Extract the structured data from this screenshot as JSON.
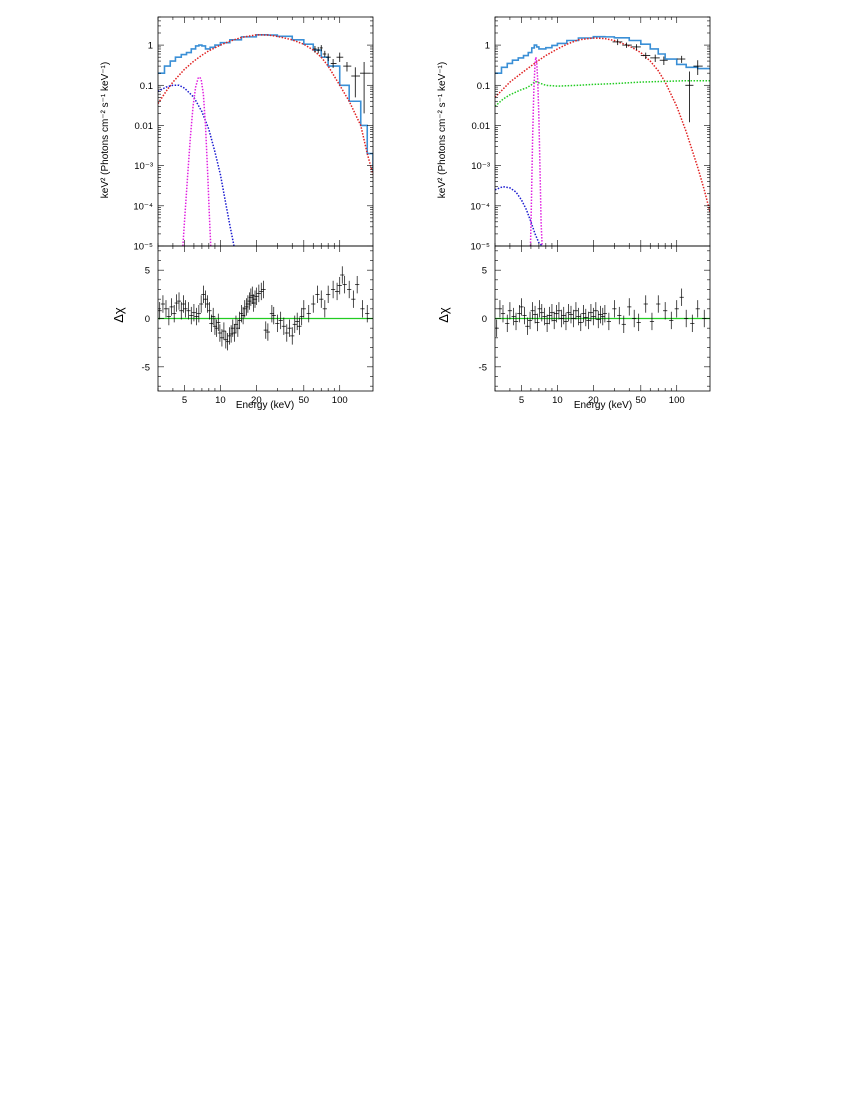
{
  "labels": {
    "ylabel_spectrum": "keV² (Photons cm⁻² s⁻¹ keV⁻¹)",
    "ylabel_residual": "Δχ",
    "xlabel": "Energy (keV)"
  },
  "colors": {
    "data": "#000000",
    "total_model": "#3a8fd6",
    "red_component": "#e02020",
    "blue_component": "#1a1ad0",
    "magenta_component": "#e020e0",
    "green_component": "#22cc22",
    "zero_line": "#22cc22"
  },
  "chart_data": [
    {
      "type": "line",
      "panel": "left-top",
      "xlabel": "",
      "ylabel": "keV² (Photons cm⁻² s⁻¹ keV⁻¹)",
      "xscale": "log",
      "yscale": "log",
      "xlim": [
        3,
        190
      ],
      "ylim": [
        1e-05,
        5
      ],
      "xticks": [
        5,
        10,
        20,
        50,
        100
      ],
      "yticks": [
        1e-05,
        0.0001,
        0.001,
        0.01,
        0.1,
        1
      ],
      "yticklabels": [
        "10⁻⁵",
        "10⁻⁴",
        "10⁻³",
        "0.01",
        "0.1",
        "1"
      ],
      "series": [
        {
          "component": "total_model",
          "style": "step",
          "x": [
            3,
            3.4,
            3.8,
            4.2,
            4.7,
            5.2,
            5.7,
            6.2,
            6.6,
            7.0,
            7.5,
            8.2,
            9,
            10,
            12,
            15,
            20,
            25,
            30,
            40,
            50,
            60,
            70,
            80,
            100,
            120,
            150,
            170,
            190
          ],
          "y": [
            0.2,
            0.3,
            0.4,
            0.5,
            0.58,
            0.65,
            0.8,
            0.95,
            1.0,
            0.95,
            0.8,
            0.88,
            1.0,
            1.15,
            1.35,
            1.6,
            1.8,
            1.78,
            1.65,
            1.35,
            1.05,
            0.75,
            0.5,
            0.3,
            0.1,
            0.04,
            0.01,
            0.002,
            0.0007
          ]
        },
        {
          "component": "red_component",
          "style": "dotted",
          "x": [
            3,
            3.5,
            4,
            5,
            6,
            7,
            8,
            10,
            12,
            15,
            20,
            25,
            30,
            40,
            50,
            60,
            70,
            80,
            100,
            120,
            150,
            170,
            190
          ],
          "y": [
            0.035,
            0.07,
            0.12,
            0.25,
            0.4,
            0.56,
            0.72,
            1.0,
            1.25,
            1.55,
            1.8,
            1.78,
            1.65,
            1.35,
            1.05,
            0.75,
            0.5,
            0.3,
            0.1,
            0.04,
            0.01,
            0.002,
            0.0006
          ]
        },
        {
          "component": "blue_component",
          "style": "dotted",
          "x": [
            3,
            3.5,
            4,
            4.5,
            5,
            6,
            7,
            8,
            9,
            10,
            11,
            12,
            13
          ],
          "y": [
            0.07,
            0.09,
            0.1,
            0.1,
            0.085,
            0.05,
            0.022,
            0.008,
            0.0022,
            0.0006,
            0.00013,
            3.3e-05,
            1e-05
          ]
        },
        {
          "component": "magenta_component",
          "style": "dotted",
          "x": [
            4.85,
            5.0,
            5.3,
            5.6,
            5.9,
            6.2,
            6.5,
            6.7,
            6.9,
            7.2,
            7.5,
            7.8,
            8.1,
            8.3
          ],
          "y": [
            1e-05,
            4e-05,
            0.0005,
            0.005,
            0.03,
            0.09,
            0.15,
            0.16,
            0.14,
            0.06,
            0.01,
            0.0008,
            5e-05,
            1e-05
          ]
        }
      ],
      "data_points": {
        "x": [
          62,
          66,
          70,
          75,
          80,
          88,
          100,
          115,
          135,
          160
        ],
        "y": [
          0.8,
          0.75,
          0.85,
          0.6,
          0.5,
          0.35,
          0.5,
          0.3,
          0.17,
          0.2
        ],
        "yerr_lo": [
          0.65,
          0.62,
          0.7,
          0.5,
          0.4,
          0.27,
          0.38,
          0.22,
          0.05,
          0.02
        ],
        "yerr_hi": [
          0.95,
          0.9,
          1.0,
          0.72,
          0.62,
          0.45,
          0.65,
          0.38,
          0.28,
          0.38
        ],
        "xerr_lo": [
          60,
          64,
          68,
          72,
          77,
          84,
          94,
          107,
          125,
          148
        ],
        "xerr_hi": [
          64,
          68,
          72,
          77,
          84,
          94,
          107,
          125,
          148,
          180
        ]
      }
    },
    {
      "type": "scatter",
      "panel": "left-bottom",
      "xlabel": "Energy (keV)",
      "ylabel": "Δχ",
      "xscale": "log",
      "xlim": [
        3,
        190
      ],
      "ylim": [
        -7.5,
        7.5
      ],
      "xticks": [
        5,
        10,
        20,
        50,
        100
      ],
      "yticks": [
        -5,
        0,
        5
      ],
      "zero_line": 0,
      "x": [
        3.1,
        3.3,
        3.5,
        3.7,
        3.9,
        4.1,
        4.3,
        4.5,
        4.7,
        4.9,
        5.1,
        5.4,
        5.7,
        6.0,
        6.3,
        6.6,
        6.9,
        7.2,
        7.5,
        7.8,
        8.1,
        8.4,
        8.7,
        9.0,
        9.3,
        9.6,
        9.9,
        10.3,
        10.7,
        11.1,
        11.5,
        11.9,
        12.3,
        12.7,
        13.1,
        13.5,
        14,
        14.5,
        15,
        15.5,
        16,
        16.5,
        17,
        17.5,
        18,
        18.5,
        19,
        19.5,
        20,
        21,
        22,
        23,
        24,
        25,
        27,
        28,
        30,
        32,
        34,
        36,
        38,
        40,
        42,
        44,
        46,
        48,
        50,
        55,
        60,
        65,
        70,
        75,
        80,
        88,
        95,
        100,
        105,
        110,
        120,
        130,
        140,
        155,
        170
      ],
      "y": [
        0.8,
        1.5,
        1.0,
        0.2,
        1.2,
        0.5,
        1.6,
        1.8,
        0.8,
        1.5,
        1.0,
        0.8,
        0.3,
        0.6,
        0.2,
        0.5,
        1.5,
        2.5,
        2.0,
        1.5,
        0.8,
        -0.5,
        0.2,
        -0.8,
        -1.0,
        -0.4,
        -1.5,
        -2.0,
        -1.3,
        -2.2,
        -2.4,
        -1.8,
        -1.6,
        -1.0,
        -1.5,
        -0.6,
        -1.0,
        -0.2,
        0.5,
        0.3,
        1.0,
        1.2,
        1.5,
        1.8,
        2.2,
        2.4,
        1.6,
        2.0,
        2.3,
        2.6,
        2.8,
        3.0,
        -1.2,
        -1.4,
        0.5,
        0.3,
        -0.5,
        -0.2,
        -0.8,
        -1.5,
        -1.0,
        -1.8,
        -0.6,
        -0.3,
        -0.8,
        0.2,
        1.0,
        0.5,
        1.5,
        2.5,
        2.0,
        1.0,
        2.5,
        3.0,
        2.8,
        3.4,
        4.5,
        3.5,
        3.0,
        2.0,
        3.5,
        1.0,
        0.5
      ],
      "yerr": 0.9
    },
    {
      "type": "line",
      "panel": "right-top",
      "xlabel": "",
      "ylabel": "keV² (Photons cm⁻² s⁻¹ keV⁻¹)",
      "xscale": "log",
      "yscale": "log",
      "xlim": [
        3,
        190
      ],
      "ylim": [
        1e-05,
        5
      ],
      "xticks": [
        5,
        10,
        20,
        50,
        100
      ],
      "yticks": [
        1e-05,
        0.0001,
        0.001,
        0.01,
        0.1,
        1
      ],
      "yticklabels": [
        "10⁻⁵",
        "10⁻⁴",
        "10⁻³",
        "0.01",
        "0.1",
        "1"
      ],
      "series": [
        {
          "component": "total_model",
          "style": "step",
          "x": [
            3,
            3.4,
            3.8,
            4.2,
            4.7,
            5.2,
            5.7,
            6.1,
            6.4,
            6.7,
            7.0,
            7.5,
            8,
            9,
            10,
            12,
            15,
            20,
            25,
            30,
            40,
            50,
            60,
            70,
            80,
            100,
            120,
            150,
            190
          ],
          "y": [
            0.2,
            0.28,
            0.35,
            0.42,
            0.48,
            0.55,
            0.65,
            0.85,
            1.0,
            0.9,
            0.8,
            0.8,
            0.86,
            0.98,
            1.1,
            1.3,
            1.5,
            1.62,
            1.6,
            1.52,
            1.3,
            1.05,
            0.8,
            0.6,
            0.45,
            0.33,
            0.28,
            0.26,
            0.26
          ]
        },
        {
          "component": "red_component",
          "style": "dotted",
          "x": [
            3,
            3.5,
            4,
            5,
            6,
            7,
            8,
            10,
            12,
            15,
            20,
            25,
            30,
            40,
            50,
            60,
            70,
            80,
            100,
            120,
            150,
            170,
            190
          ],
          "y": [
            0.05,
            0.08,
            0.12,
            0.2,
            0.3,
            0.42,
            0.55,
            0.8,
            1.05,
            1.35,
            1.5,
            1.45,
            1.3,
            0.95,
            0.65,
            0.4,
            0.23,
            0.12,
            0.03,
            0.007,
            0.0009,
            0.00025,
            7e-05
          ]
        },
        {
          "component": "green_component",
          "style": "dotted",
          "x": [
            3,
            3.5,
            4,
            4.5,
            5,
            5.5,
            6,
            6.5,
            7,
            8,
            10,
            15,
            20,
            30,
            50,
            80,
            120,
            190
          ],
          "y": [
            0.03,
            0.045,
            0.058,
            0.068,
            0.078,
            0.086,
            0.1,
            0.125,
            0.115,
            0.1,
            0.095,
            0.1,
            0.105,
            0.11,
            0.12,
            0.125,
            0.13,
            0.13
          ]
        },
        {
          "component": "blue_component",
          "style": "dotted",
          "x": [
            3,
            3.5,
            4,
            4.5,
            5,
            5.5,
            6,
            6.5,
            7,
            7.5
          ],
          "y": [
            0.00025,
            0.0003,
            0.00028,
            0.00022,
            0.00014,
            8e-05,
            4e-05,
            2e-05,
            1.2e-05,
            1e-05
          ]
        },
        {
          "component": "magenta_component",
          "style": "dotted",
          "x": [
            5.95,
            6.05,
            6.2,
            6.35,
            6.5,
            6.6,
            6.7,
            6.85,
            7.0,
            7.15,
            7.3,
            7.45
          ],
          "y": [
            1e-05,
            0.0001,
            0.005,
            0.08,
            0.35,
            0.5,
            0.4,
            0.12,
            0.015,
            0.0008,
            4e-05,
            1e-05
          ]
        }
      ],
      "data_points": {
        "x": [
          32,
          38,
          46,
          55,
          66,
          78,
          110,
          128,
          150
        ],
        "y": [
          1.2,
          1.0,
          0.9,
          0.55,
          0.48,
          0.42,
          0.45,
          0.1,
          0.3
        ],
        "yerr_lo": [
          1.0,
          0.85,
          0.75,
          0.45,
          0.38,
          0.32,
          0.36,
          0.012,
          0.18
        ],
        "yerr_hi": [
          1.4,
          1.15,
          1.05,
          0.65,
          0.58,
          0.52,
          0.54,
          0.22,
          0.42
        ],
        "xerr_lo": [
          29,
          35,
          42,
          50,
          60,
          72,
          100,
          118,
          138
        ],
        "xerr_hi": [
          35,
          42,
          50,
          60,
          72,
          84,
          118,
          138,
          165
        ]
      }
    },
    {
      "type": "scatter",
      "panel": "right-bottom",
      "xlabel": "Energy (keV)",
      "ylabel": "Δχ",
      "xscale": "log",
      "xlim": [
        3,
        190
      ],
      "ylim": [
        -7.5,
        7.5
      ],
      "xticks": [
        5,
        10,
        20,
        50,
        100
      ],
      "yticks": [
        -5,
        0,
        5
      ],
      "zero_line": 0,
      "x": [
        3.1,
        3.3,
        3.5,
        3.8,
        4.0,
        4.3,
        4.5,
        4.8,
        5.0,
        5.3,
        5.6,
        5.9,
        6.2,
        6.5,
        6.8,
        7.1,
        7.4,
        7.8,
        8.2,
        8.6,
        9.0,
        9.4,
        9.8,
        10.3,
        10.8,
        11.3,
        11.8,
        12.4,
        13,
        13.6,
        14.3,
        15,
        15.7,
        16.5,
        17.3,
        18.2,
        19.1,
        20,
        21,
        22,
        23,
        24,
        25,
        27,
        30,
        33,
        36,
        40,
        44,
        48,
        55,
        62,
        70,
        80,
        90,
        100,
        110,
        120,
        135,
        150,
        170
      ],
      "y": [
        -1.0,
        1.0,
        0.5,
        -0.5,
        0.8,
        0.2,
        -0.3,
        0.5,
        1.2,
        0.3,
        -0.8,
        -0.2,
        0.8,
        0.4,
        -0.4,
        1.0,
        0.6,
        0.2,
        -0.5,
        0.3,
        0.6,
        -0.2,
        0.5,
        0.8,
        0.0,
        0.3,
        -0.3,
        0.6,
        0.4,
        0.0,
        0.8,
        0.2,
        -0.4,
        0.5,
        0.1,
        -0.2,
        0.6,
        0.2,
        0.8,
        -0.1,
        0.4,
        0.2,
        0.5,
        -0.3,
        1.0,
        0.3,
        -0.6,
        1.2,
        0.0,
        -0.4,
        1.5,
        -0.3,
        1.5,
        0.8,
        -0.2,
        1.0,
        2.2,
        0.0,
        -0.5,
        1.0,
        0.0
      ],
      "yerr": 0.9
    }
  ]
}
